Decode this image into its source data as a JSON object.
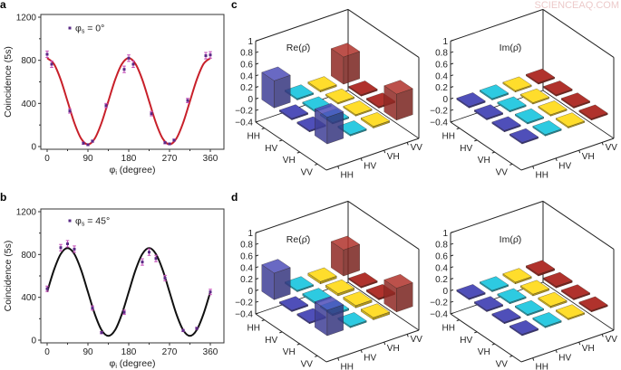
{
  "figure": {
    "watermark": "SCIENCEAQ.COM"
  },
  "chart_data": [
    {
      "panel": "a",
      "type": "line",
      "legend": {
        "symbol": "φ",
        "sub": "s",
        "text": " = 0°"
      },
      "xlabel": {
        "symbol": "φ",
        "sub": "i",
        "text": " (degree)"
      },
      "ylabel": "Coincidence (5s)",
      "xlim": [
        0,
        360
      ],
      "ylim": [
        0,
        1200
      ],
      "xticks": [
        "0",
        "90",
        "180",
        "270",
        "360"
      ],
      "yticks": [
        "0",
        "400",
        "800",
        "1200"
      ],
      "points": {
        "x": [
          0,
          10,
          50,
          80,
          90,
          100,
          130,
          170,
          180,
          190,
          230,
          260,
          270,
          280,
          310,
          350,
          360
        ],
        "y": [
          856,
          764,
          330,
          31,
          17,
          50,
          380,
          716,
          820,
          764,
          305,
          36,
          25,
          59,
          427,
          843,
          850
        ],
        "err": [
          30,
          30,
          20,
          10,
          8,
          10,
          20,
          30,
          30,
          30,
          20,
          10,
          8,
          10,
          20,
          30,
          30
        ]
      },
      "fit": {
        "x": [
          0,
          15,
          30,
          45,
          60,
          75,
          90,
          105,
          120,
          135,
          150,
          165,
          180,
          195,
          210,
          225,
          240,
          255,
          270,
          285,
          300,
          315,
          330,
          345,
          360
        ],
        "y": [
          820,
          766,
          620,
          420,
          220,
          74,
          20,
          74,
          220,
          420,
          620,
          766,
          820,
          766,
          620,
          420,
          220,
          74,
          20,
          74,
          220,
          420,
          620,
          766,
          820
        ]
      },
      "colors": {
        "fit": "#c8202a",
        "marker": "#5a2a86",
        "errorbar": "#c44bb8"
      }
    },
    {
      "panel": "b",
      "type": "line",
      "legend": {
        "symbol": "φ",
        "sub": "s",
        "text": " = 45°"
      },
      "xlabel": {
        "symbol": "φ",
        "sub": "i",
        "text": " (degree)"
      },
      "ylabel": "Coincidence (5s)",
      "xlim": [
        0,
        360
      ],
      "ylim": [
        0,
        1200
      ],
      "xticks": [
        "0",
        "90",
        "180",
        "270",
        "360"
      ],
      "yticks": [
        "0",
        "400",
        "800",
        "1200"
      ],
      "points": {
        "x": [
          0,
          30,
          45,
          60,
          100,
          120,
          170,
          210,
          225,
          240,
          260,
          300,
          330,
          360
        ],
        "y": [
          480,
          864,
          900,
          850,
          300,
          70,
          260,
          730,
          822,
          763,
          580,
          90,
          110,
          450
        ],
        "err": [
          25,
          30,
          30,
          30,
          20,
          10,
          20,
          30,
          30,
          30,
          25,
          10,
          10,
          25
        ]
      },
      "fit": {
        "x": [
          0,
          15,
          30,
          45,
          60,
          75,
          90,
          105,
          120,
          135,
          150,
          165,
          180,
          195,
          210,
          225,
          240,
          255,
          270,
          285,
          300,
          315,
          330,
          345,
          360
        ],
        "y": [
          450,
          655,
          805,
          860,
          805,
          655,
          450,
          245,
          95,
          40,
          95,
          245,
          450,
          655,
          805,
          860,
          805,
          655,
          450,
          245,
          95,
          40,
          95,
          245,
          450
        ]
      },
      "colors": {
        "fit": "#111111",
        "marker": "#5a2a86",
        "errorbar": "#c44bb8"
      }
    },
    {
      "panel": "c",
      "type": "bar3d",
      "title": "Re(ρ̂)",
      "rows": [
        "HH",
        "HV",
        "VH",
        "VV"
      ],
      "cols": [
        "HH",
        "HV",
        "VH",
        "VV"
      ],
      "zlim": [
        -0.4,
        1
      ],
      "zticks": [
        "1",
        "0.8",
        "0.6",
        "0.4",
        "0.2",
        "0",
        "−0.2",
        "−0.4"
      ],
      "values": [
        [
          0.47,
          0.02,
          0.03,
          0.47
        ],
        [
          0.01,
          0.02,
          0.02,
          0.01
        ],
        [
          0.01,
          0.02,
          0.02,
          0.01
        ],
        [
          0.46,
          0.02,
          0.03,
          0.45
        ]
      ],
      "colors": [
        "#4b4bb0",
        "#2bc0d6",
        "#f4d22a",
        "#a8302a"
      ]
    },
    {
      "panel": "c",
      "type": "bar3d",
      "title": "Im(ρ̂)",
      "rows": [
        "HH",
        "HV",
        "VH",
        "VV"
      ],
      "cols": [
        "HH",
        "HV",
        "VH",
        "VV"
      ],
      "zlim": [
        -0.4,
        1
      ],
      "zticks": [
        "1",
        "0.8",
        "0.6",
        "0.4",
        "0.2",
        "0",
        "−0.2",
        "−0.4"
      ],
      "values": [
        [
          0.0,
          0.01,
          0.01,
          0.0
        ],
        [
          0.0,
          0.01,
          0.01,
          0.0
        ],
        [
          0.0,
          0.01,
          0.01,
          0.0
        ],
        [
          0.0,
          0.0,
          0.01,
          0.0
        ]
      ],
      "colors": [
        "#4b4bb0",
        "#2bc0d6",
        "#f4d22a",
        "#a8302a"
      ]
    },
    {
      "panel": "d",
      "type": "bar3d",
      "title": "Re(ρ̂)",
      "rows": [
        "HH",
        "HV",
        "VH",
        "VV"
      ],
      "cols": [
        "HH",
        "HV",
        "VH",
        "VV"
      ],
      "zlim": [
        -0.4,
        1
      ],
      "zticks": [
        "1",
        "0.8",
        "0.6",
        "0.4",
        "0.2",
        "0",
        "−0.2",
        "−0.4"
      ],
      "values": [
        [
          0.46,
          0.02,
          0.04,
          0.45
        ],
        [
          0.02,
          0.03,
          0.04,
          0.02
        ],
        [
          0.02,
          0.03,
          0.04,
          0.03
        ],
        [
          0.44,
          0.02,
          0.04,
          0.41
        ]
      ],
      "colors": [
        "#4b4bb0",
        "#2bc0d6",
        "#f4d22a",
        "#a8302a"
      ]
    },
    {
      "panel": "d",
      "type": "bar3d",
      "title": "Im(ρ̂)",
      "rows": [
        "HH",
        "HV",
        "VH",
        "VV"
      ],
      "cols": [
        "HH",
        "HV",
        "VH",
        "VV"
      ],
      "zlim": [
        -0.4,
        1
      ],
      "zticks": [
        "1",
        "0.8",
        "0.6",
        "0.4",
        "0.2",
        "0",
        "−0.2",
        "−0.4"
      ],
      "values": [
        [
          0.0,
          0.01,
          0.03,
          0.03
        ],
        [
          0.0,
          0.02,
          0.03,
          0.03
        ],
        [
          0.0,
          0.01,
          0.03,
          0.02
        ],
        [
          0.0,
          0.01,
          0.02,
          0.0
        ]
      ],
      "colors": [
        "#4b4bb0",
        "#2bc0d6",
        "#f4d22a",
        "#a8302a"
      ]
    }
  ]
}
